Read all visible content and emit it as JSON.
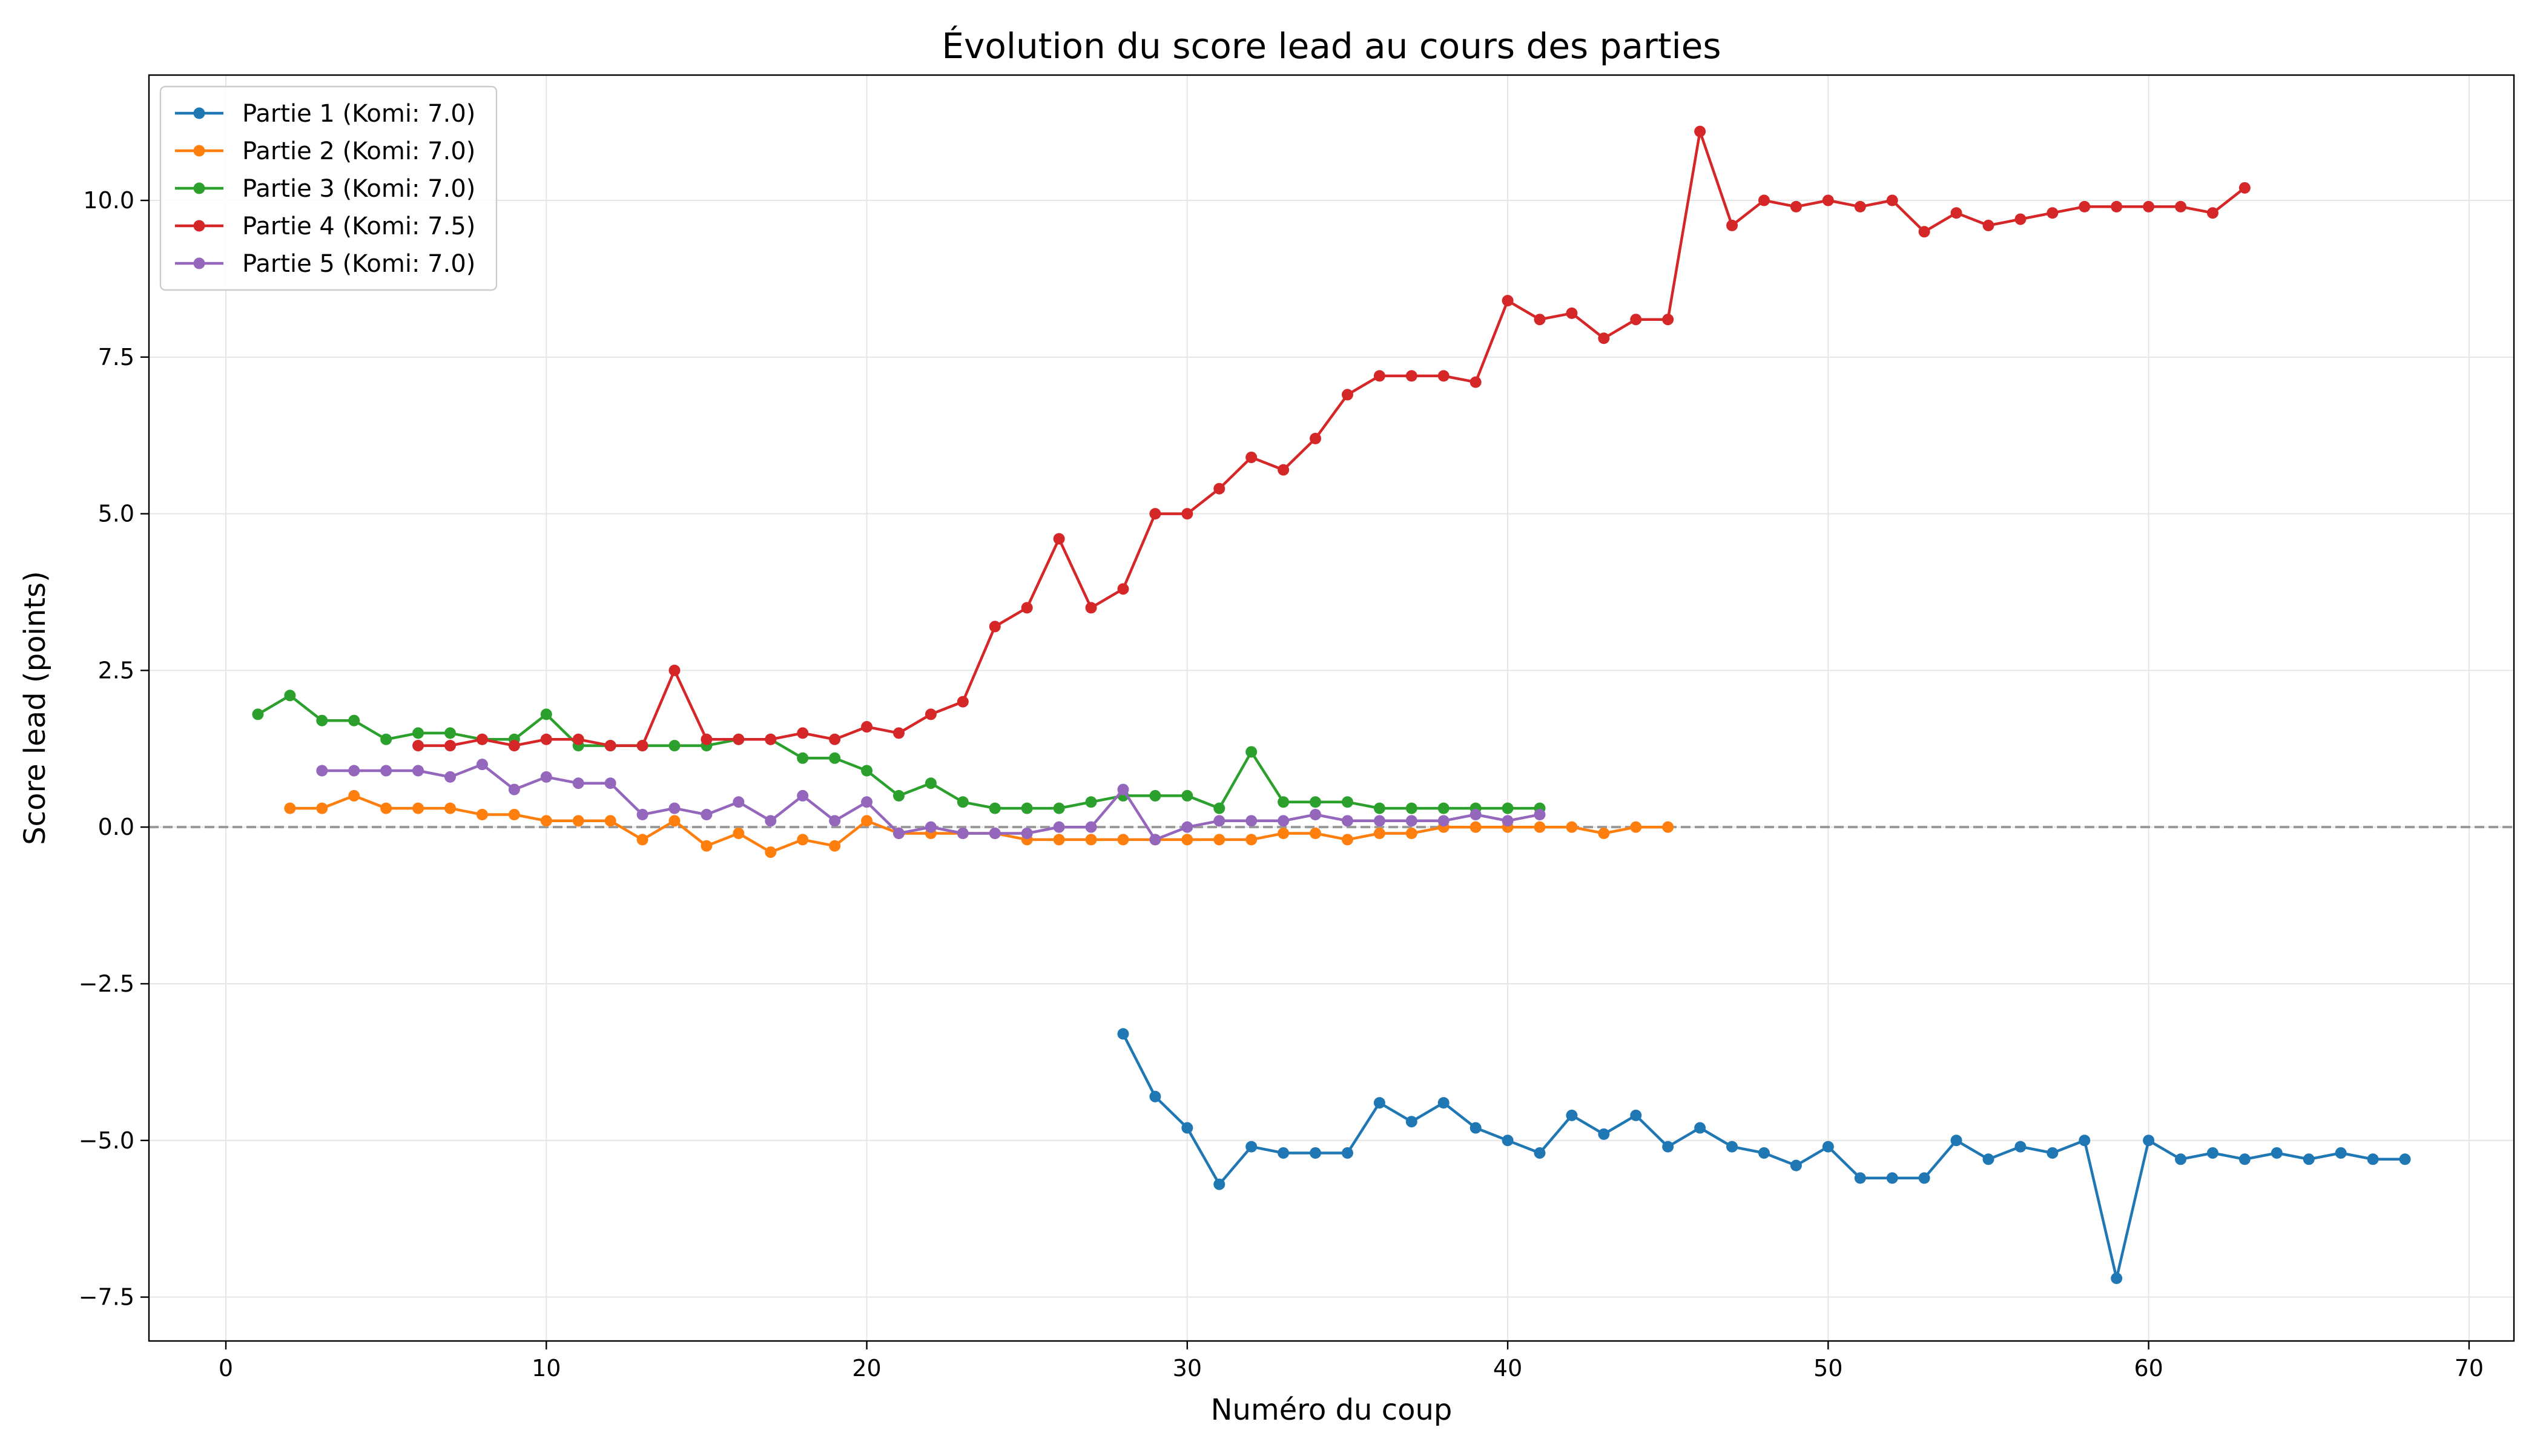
{
  "chart_data": {
    "type": "line",
    "title": "Évolution du score lead au cours des parties",
    "xlabel": "Numéro du coup",
    "ylabel": "Score lead (points)",
    "xlim": [
      -2.4,
      71.4
    ],
    "ylim": [
      -8.2,
      12.0
    ],
    "xticks": [
      0,
      10,
      20,
      30,
      40,
      50,
      60,
      70
    ],
    "yticks": [
      -7.5,
      -5.0,
      -2.5,
      0.0,
      2.5,
      5.0,
      7.5,
      10.0
    ],
    "ytick_labels": [
      "−7.5",
      "−5.0",
      "−2.5",
      "0.0",
      "2.5",
      "5.0",
      "7.5",
      "10.0"
    ],
    "grid": true,
    "legend_position": "top-left",
    "reference_line": {
      "y": 0,
      "style": "dashed",
      "color": "#999999"
    },
    "series": [
      {
        "name": "Partie 1 (Komi: 7.0)",
        "color": "#1f77b4",
        "x": [
          28,
          29,
          30,
          31,
          32,
          33,
          34,
          35,
          36,
          37,
          38,
          39,
          40,
          41,
          42,
          43,
          44,
          45,
          46,
          47,
          48,
          49,
          50,
          51,
          52,
          53,
          54,
          55,
          56,
          57,
          58,
          59,
          60,
          61,
          62,
          63,
          64,
          65,
          66,
          67,
          68
        ],
        "y": [
          -3.3,
          -4.3,
          -4.8,
          -5.7,
          -5.1,
          -5.2,
          -5.2,
          -5.2,
          -4.4,
          -4.7,
          -4.4,
          -4.8,
          -5.0,
          -5.2,
          -4.6,
          -4.9,
          -4.6,
          -5.1,
          -4.8,
          -5.1,
          -5.2,
          -5.4,
          -5.1,
          -5.6,
          -5.6,
          -5.6,
          -5.0,
          -5.3,
          -5.1,
          -5.2,
          -5.0,
          -7.2,
          -5.0,
          -5.3,
          -5.2,
          -5.3,
          -5.2,
          -5.3,
          -5.2,
          -5.3,
          -5.3
        ]
      },
      {
        "name": "Partie 2 (Komi: 7.0)",
        "color": "#ff7f0e",
        "x": [
          2,
          3,
          4,
          5,
          6,
          7,
          8,
          9,
          10,
          11,
          12,
          13,
          14,
          15,
          16,
          17,
          18,
          19,
          20,
          21,
          22,
          23,
          24,
          25,
          26,
          27,
          28,
          29,
          30,
          31,
          32,
          33,
          34,
          35,
          36,
          37,
          38,
          39,
          40,
          41,
          42,
          43,
          44,
          45
        ],
        "y": [
          0.3,
          0.3,
          0.5,
          0.3,
          0.3,
          0.3,
          0.2,
          0.2,
          0.1,
          0.1,
          0.1,
          -0.2,
          0.1,
          -0.3,
          -0.1,
          -0.4,
          -0.2,
          -0.3,
          0.1,
          -0.1,
          -0.1,
          -0.1,
          -0.1,
          -0.2,
          -0.2,
          -0.2,
          -0.2,
          -0.2,
          -0.2,
          -0.2,
          -0.2,
          -0.1,
          -0.1,
          -0.2,
          -0.1,
          -0.1,
          0.0,
          0.0,
          0.0,
          0.0,
          0.0,
          -0.1,
          0.0,
          0.0
        ]
      },
      {
        "name": "Partie 3 (Komi: 7.0)",
        "color": "#2ca02c",
        "x": [
          1,
          2,
          3,
          4,
          5,
          6,
          7,
          8,
          9,
          10,
          11,
          12,
          13,
          14,
          15,
          16,
          17,
          18,
          19,
          20,
          21,
          22,
          23,
          24,
          25,
          26,
          27,
          28,
          29,
          30,
          31,
          32,
          33,
          34,
          35,
          36,
          37,
          38,
          39,
          40,
          41
        ],
        "y": [
          1.8,
          2.1,
          1.7,
          1.7,
          1.4,
          1.5,
          1.5,
          1.4,
          1.4,
          1.8,
          1.3,
          1.3,
          1.3,
          1.3,
          1.3,
          1.4,
          1.4,
          1.1,
          1.1,
          0.9,
          0.5,
          0.7,
          0.4,
          0.3,
          0.3,
          0.3,
          0.4,
          0.5,
          0.5,
          0.5,
          0.3,
          1.2,
          0.4,
          0.4,
          0.4,
          0.3,
          0.3,
          0.3,
          0.3,
          0.3,
          0.3
        ]
      },
      {
        "name": "Partie 4 (Komi: 7.5)",
        "color": "#d62728",
        "x": [
          6,
          7,
          8,
          9,
          10,
          11,
          12,
          13,
          14,
          15,
          16,
          17,
          18,
          19,
          20,
          21,
          22,
          23,
          24,
          25,
          26,
          27,
          28,
          29,
          30,
          31,
          32,
          33,
          34,
          35,
          36,
          37,
          38,
          39,
          40,
          41,
          42,
          43,
          44,
          45,
          46,
          47,
          48,
          49,
          50,
          51,
          52,
          53,
          54,
          55,
          56,
          57,
          58,
          59,
          60,
          61,
          62,
          63
        ],
        "y": [
          1.3,
          1.3,
          1.4,
          1.3,
          1.4,
          1.4,
          1.3,
          1.3,
          2.5,
          1.4,
          1.4,
          1.4,
          1.5,
          1.4,
          1.6,
          1.5,
          1.8,
          2.0,
          3.2,
          3.5,
          4.6,
          3.5,
          3.8,
          5.0,
          5.0,
          5.4,
          5.9,
          5.7,
          6.2,
          6.9,
          7.2,
          7.2,
          7.2,
          7.1,
          8.4,
          8.1,
          8.2,
          7.8,
          8.1,
          8.1,
          11.1,
          9.6,
          10.0,
          9.9,
          10.0,
          9.9,
          10.0,
          9.5,
          9.8,
          9.6,
          9.7,
          9.8,
          9.9,
          9.9,
          9.9,
          9.9,
          9.8,
          10.2
        ]
      },
      {
        "name": "Partie 5 (Komi: 7.0)",
        "color": "#9467bd",
        "x": [
          3,
          4,
          5,
          6,
          7,
          8,
          9,
          10,
          11,
          12,
          13,
          14,
          15,
          16,
          17,
          18,
          19,
          20,
          21,
          22,
          23,
          24,
          25,
          26,
          27,
          28,
          29,
          30,
          31,
          32,
          33,
          34,
          35,
          36,
          37,
          38,
          39,
          40,
          41
        ],
        "y": [
          0.9,
          0.9,
          0.9,
          0.9,
          0.8,
          1.0,
          0.6,
          0.8,
          0.7,
          0.7,
          0.2,
          0.3,
          0.2,
          0.4,
          0.1,
          0.5,
          0.1,
          0.4,
          -0.1,
          0.0,
          -0.1,
          -0.1,
          -0.1,
          0.0,
          0.0,
          0.6,
          -0.2,
          0.0,
          0.1,
          0.1,
          0.1,
          0.2,
          0.1,
          0.1,
          0.1,
          0.1,
          0.2,
          0.1,
          0.2
        ]
      }
    ]
  }
}
